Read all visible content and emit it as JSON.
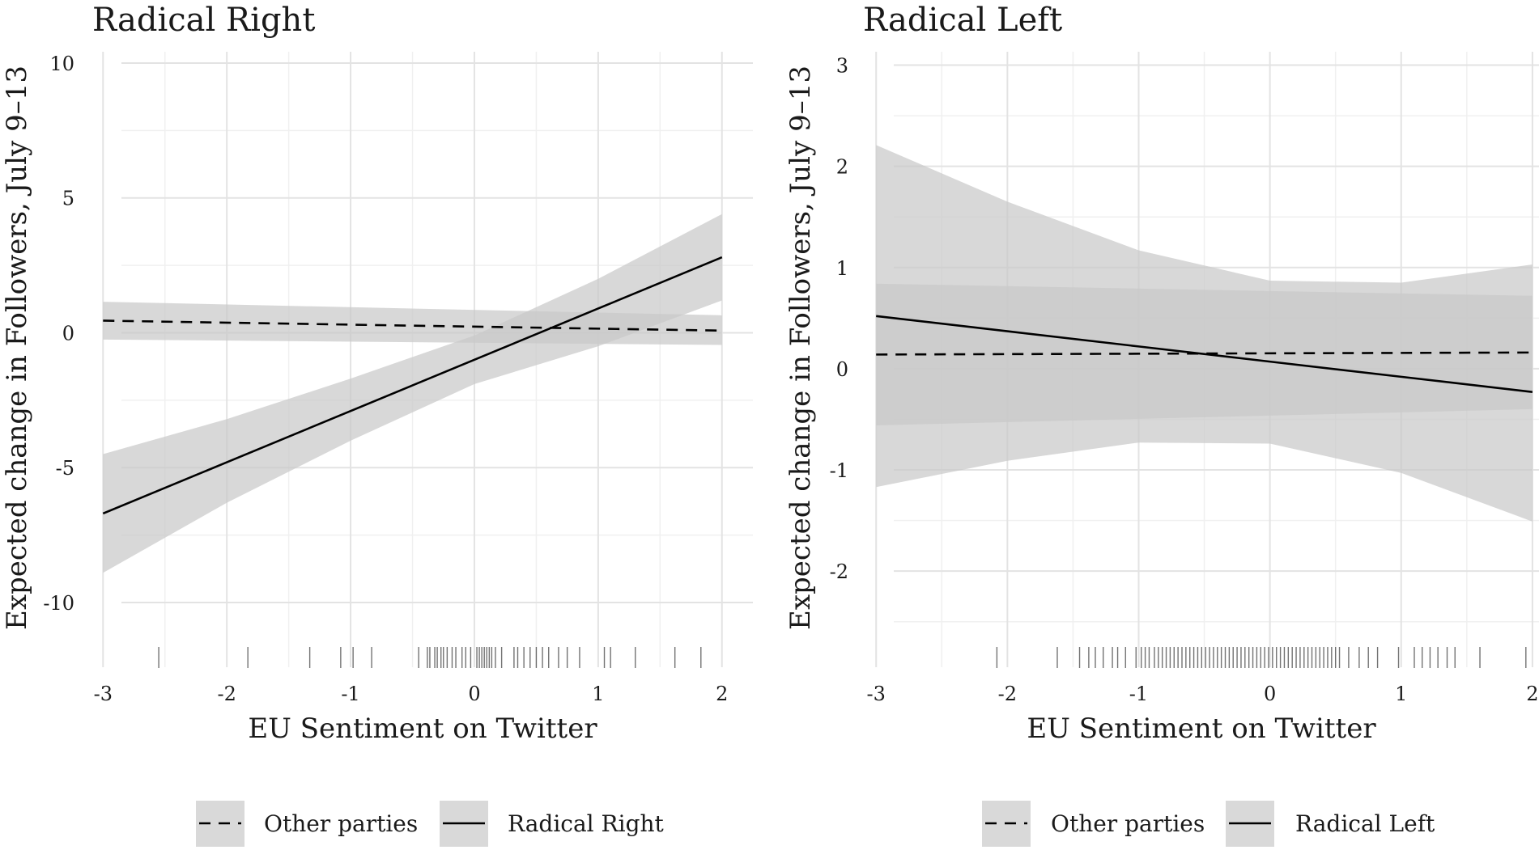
{
  "chart_data": [
    {
      "type": "line",
      "title": "Radical Right",
      "xlabel": "EU Sentiment on Twitter",
      "ylabel": "Expected change in Followers, July 9–13",
      "xlim": [
        -3.1,
        2.25
      ],
      "ylim": [
        -12.4,
        10.3
      ],
      "xticks": [
        -3,
        -2,
        -1,
        0,
        1,
        2
      ],
      "xtick_labels": [
        "-3",
        "-2",
        "-1",
        "0",
        "1",
        "2"
      ],
      "yticks": [
        10,
        5,
        0,
        -5,
        -10
      ],
      "ytick_labels": [
        "10",
        "5",
        "0",
        "-5",
        "-10"
      ],
      "grid": true,
      "series": [
        {
          "name": "Other parties",
          "line_style": "dashed",
          "x": [
            -3,
            2
          ],
          "y": [
            0.45,
            0.08
          ],
          "ci_lower": [
            -0.25,
            -0.45
          ],
          "ci_upper": [
            1.15,
            0.65
          ]
        },
        {
          "name": "Radical Right",
          "line_style": "solid",
          "x": [
            -3,
            -2,
            -1,
            0,
            1,
            2
          ],
          "y": [
            -6.7,
            -4.8,
            -2.9,
            -1.0,
            0.9,
            2.8
          ],
          "ci_lower": [
            -8.9,
            -6.3,
            -4.0,
            -1.9,
            -0.5,
            1.2
          ],
          "ci_upper": [
            -4.5,
            -3.2,
            -1.7,
            -0.1,
            2.0,
            4.4
          ]
        }
      ],
      "rug_x": [
        -2.55,
        -1.83,
        -1.33,
        -1.08,
        -0.98,
        -0.83,
        -0.45,
        -0.38,
        -0.36,
        -0.32,
        -0.3,
        -0.27,
        -0.25,
        -0.22,
        -0.18,
        -0.15,
        -0.1,
        -0.07,
        -0.03,
        0.02,
        0.04,
        0.06,
        0.08,
        0.1,
        0.12,
        0.14,
        0.17,
        0.22,
        0.32,
        0.35,
        0.4,
        0.45,
        0.5,
        0.55,
        0.6,
        0.68,
        0.75,
        0.85,
        1.05,
        1.1,
        1.3,
        1.62,
        1.83
      ],
      "legend": [
        "Other parties",
        "Radical Right"
      ]
    },
    {
      "type": "line",
      "title": "Radical Left",
      "xlabel": "EU Sentiment on Twitter",
      "ylabel": "Expected change in Followers, July 9–13",
      "xlim": [
        -3.1,
        2.05
      ],
      "ylim": [
        -2.95,
        3.1
      ],
      "xticks": [
        -3,
        -2,
        -1,
        0,
        1,
        2
      ],
      "xtick_labels": [
        "-3",
        "-2",
        "-1",
        "0",
        "1",
        "2"
      ],
      "yticks": [
        3,
        2,
        1,
        0,
        -1,
        -2
      ],
      "ytick_labels": [
        "3",
        "2",
        "1",
        "0",
        "-1",
        "-2"
      ],
      "grid": true,
      "series": [
        {
          "name": "Other parties",
          "line_style": "dashed",
          "x": [
            -3,
            2
          ],
          "y": [
            0.14,
            0.16
          ],
          "ci_lower": [
            -0.56,
            -0.4
          ],
          "ci_upper": [
            0.84,
            0.72
          ]
        },
        {
          "name": "Radical Left",
          "line_style": "solid",
          "x": [
            -3,
            -2,
            -1,
            0,
            1,
            2
          ],
          "y": [
            0.52,
            0.37,
            0.22,
            0.07,
            -0.08,
            -0.23
          ],
          "ci_lower": [
            -1.17,
            -0.91,
            -0.73,
            -0.74,
            -1.03,
            -1.51
          ],
          "ci_upper": [
            2.21,
            1.65,
            1.17,
            0.87,
            0.85,
            1.03
          ]
        }
      ],
      "rug_x": [
        -2.08,
        -1.62,
        -1.45,
        -1.38,
        -1.33,
        -1.27,
        -1.2,
        -1.16,
        -1.1,
        -1.02,
        -0.98,
        -0.95,
        -0.92,
        -0.88,
        -0.85,
        -0.82,
        -0.79,
        -0.76,
        -0.73,
        -0.7,
        -0.67,
        -0.64,
        -0.61,
        -0.58,
        -0.55,
        -0.52,
        -0.49,
        -0.46,
        -0.43,
        -0.4,
        -0.37,
        -0.34,
        -0.31,
        -0.28,
        -0.25,
        -0.22,
        -0.19,
        -0.16,
        -0.13,
        -0.1,
        -0.07,
        -0.04,
        -0.01,
        0.02,
        0.05,
        0.08,
        0.11,
        0.14,
        0.17,
        0.2,
        0.23,
        0.26,
        0.29,
        0.32,
        0.35,
        0.38,
        0.41,
        0.44,
        0.47,
        0.5,
        0.53,
        0.6,
        0.68,
        0.75,
        0.82,
        0.98,
        1.1,
        1.16,
        1.22,
        1.28,
        1.35,
        1.41,
        1.6,
        1.95
      ],
      "legend": [
        "Other parties",
        "Radical Left"
      ]
    }
  ]
}
